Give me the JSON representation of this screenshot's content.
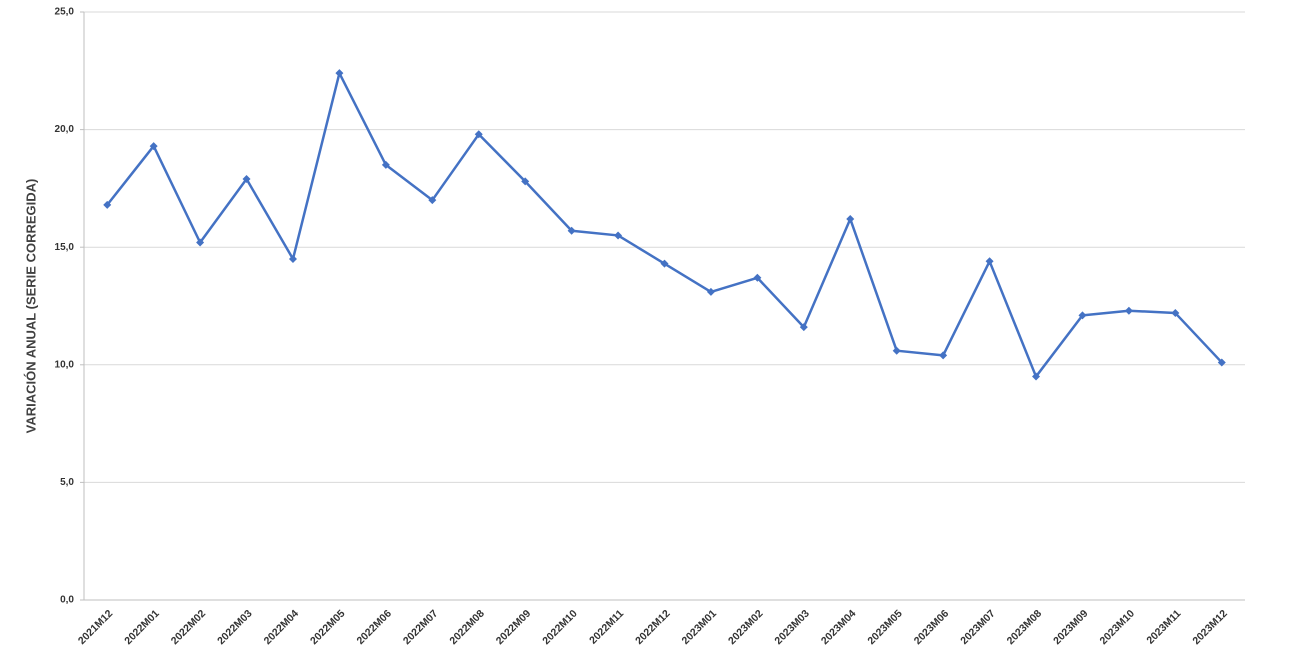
{
  "chart_data": {
    "type": "line",
    "y_label": "VARIACIÓN ANUAL (SERIE CORREGIDA)",
    "categories": [
      "2021M12",
      "2022M01",
      "2022M02",
      "2022M03",
      "2022M04",
      "2022M05",
      "2022M06",
      "2022M07",
      "2022M08",
      "2022M09",
      "2022M10",
      "2022M11",
      "2022M12",
      "2023M01",
      "2023M02",
      "2023M03",
      "2023M04",
      "2023M05",
      "2023M06",
      "2023M07",
      "2023M08",
      "2023M09",
      "2023M10",
      "2023M11",
      "2023M12"
    ],
    "values": [
      16.8,
      19.3,
      15.2,
      17.9,
      14.5,
      22.4,
      18.5,
      17.0,
      19.8,
      17.8,
      15.7,
      15.5,
      14.3,
      13.1,
      13.7,
      11.6,
      16.2,
      10.6,
      10.4,
      14.4,
      9.5,
      12.1,
      12.3,
      12.2,
      10.1
    ],
    "color": "#4472c4",
    "ylim": [
      0,
      25
    ],
    "yticks": [
      {
        "value": 0,
        "label": "0,0"
      },
      {
        "value": 5,
        "label": "5,0"
      },
      {
        "value": 10,
        "label": "10,0"
      },
      {
        "value": 15,
        "label": "15,0"
      },
      {
        "value": 20,
        "label": "20,0"
      },
      {
        "value": 25,
        "label": "25,0"
      }
    ],
    "grid": true
  }
}
